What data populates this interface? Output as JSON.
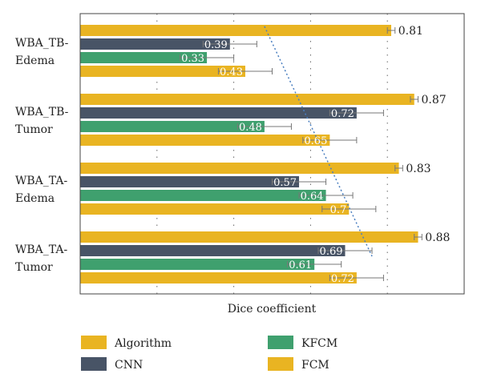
{
  "chart_data": {
    "type": "bar",
    "orientation": "horizontal",
    "title": "",
    "xlabel": "Dice coefficient",
    "ylabel": "",
    "xlim": [
      0,
      1.0
    ],
    "grid": "vertical dotted",
    "legend_position": "bottom",
    "categories": [
      "WBA_TB-Edema",
      "WBA_TB-Tumor",
      "WBA_TA-Edema",
      "WBA_TA-Tumor"
    ],
    "category_lines": [
      [
        "WBA_TB-",
        "Edema"
      ],
      [
        "WBA_TB-",
        "Tumor"
      ],
      [
        "WBA_TA-",
        "Edema"
      ],
      [
        "WBA_TA-",
        "Tumor"
      ]
    ],
    "series": [
      {
        "name": "Algorithm",
        "color": "#e9b422",
        "values": [
          0.81,
          0.87,
          0.83,
          0.88
        ],
        "errors": [
          0.01,
          0.01,
          0.01,
          0.01
        ],
        "labels": [
          "0.81",
          "0.87",
          "0.83",
          "0.88"
        ]
      },
      {
        "name": "CNN",
        "color": "#485466",
        "values": [
          0.39,
          0.72,
          0.57,
          0.69
        ],
        "errors": [
          0.07,
          0.07,
          0.07,
          0.07
        ],
        "labels": [
          "0.39",
          "0.72",
          "0.57",
          "0.69"
        ]
      },
      {
        "name": "KFCM",
        "color": "#3fa06e",
        "values": [
          0.33,
          0.48,
          0.64,
          0.61
        ],
        "errors": [
          0.07,
          0.07,
          0.07,
          0.07
        ],
        "labels": [
          "0.33",
          "0.48",
          "0.64",
          "0.61"
        ]
      },
      {
        "name": "FCM",
        "color": "#e9b422",
        "values": [
          0.43,
          0.65,
          0.7,
          0.72
        ],
        "errors": [
          0.07,
          0.07,
          0.07,
          0.07
        ],
        "labels": [
          "0.43",
          "0.65",
          "0.7",
          "0.72"
        ]
      }
    ],
    "trend_line": {
      "color": "#4a7fc0",
      "from": [
        0.48,
        "WBA_TB-Edema"
      ],
      "to": [
        0.76,
        "WBA_TA-Tumor"
      ]
    }
  }
}
